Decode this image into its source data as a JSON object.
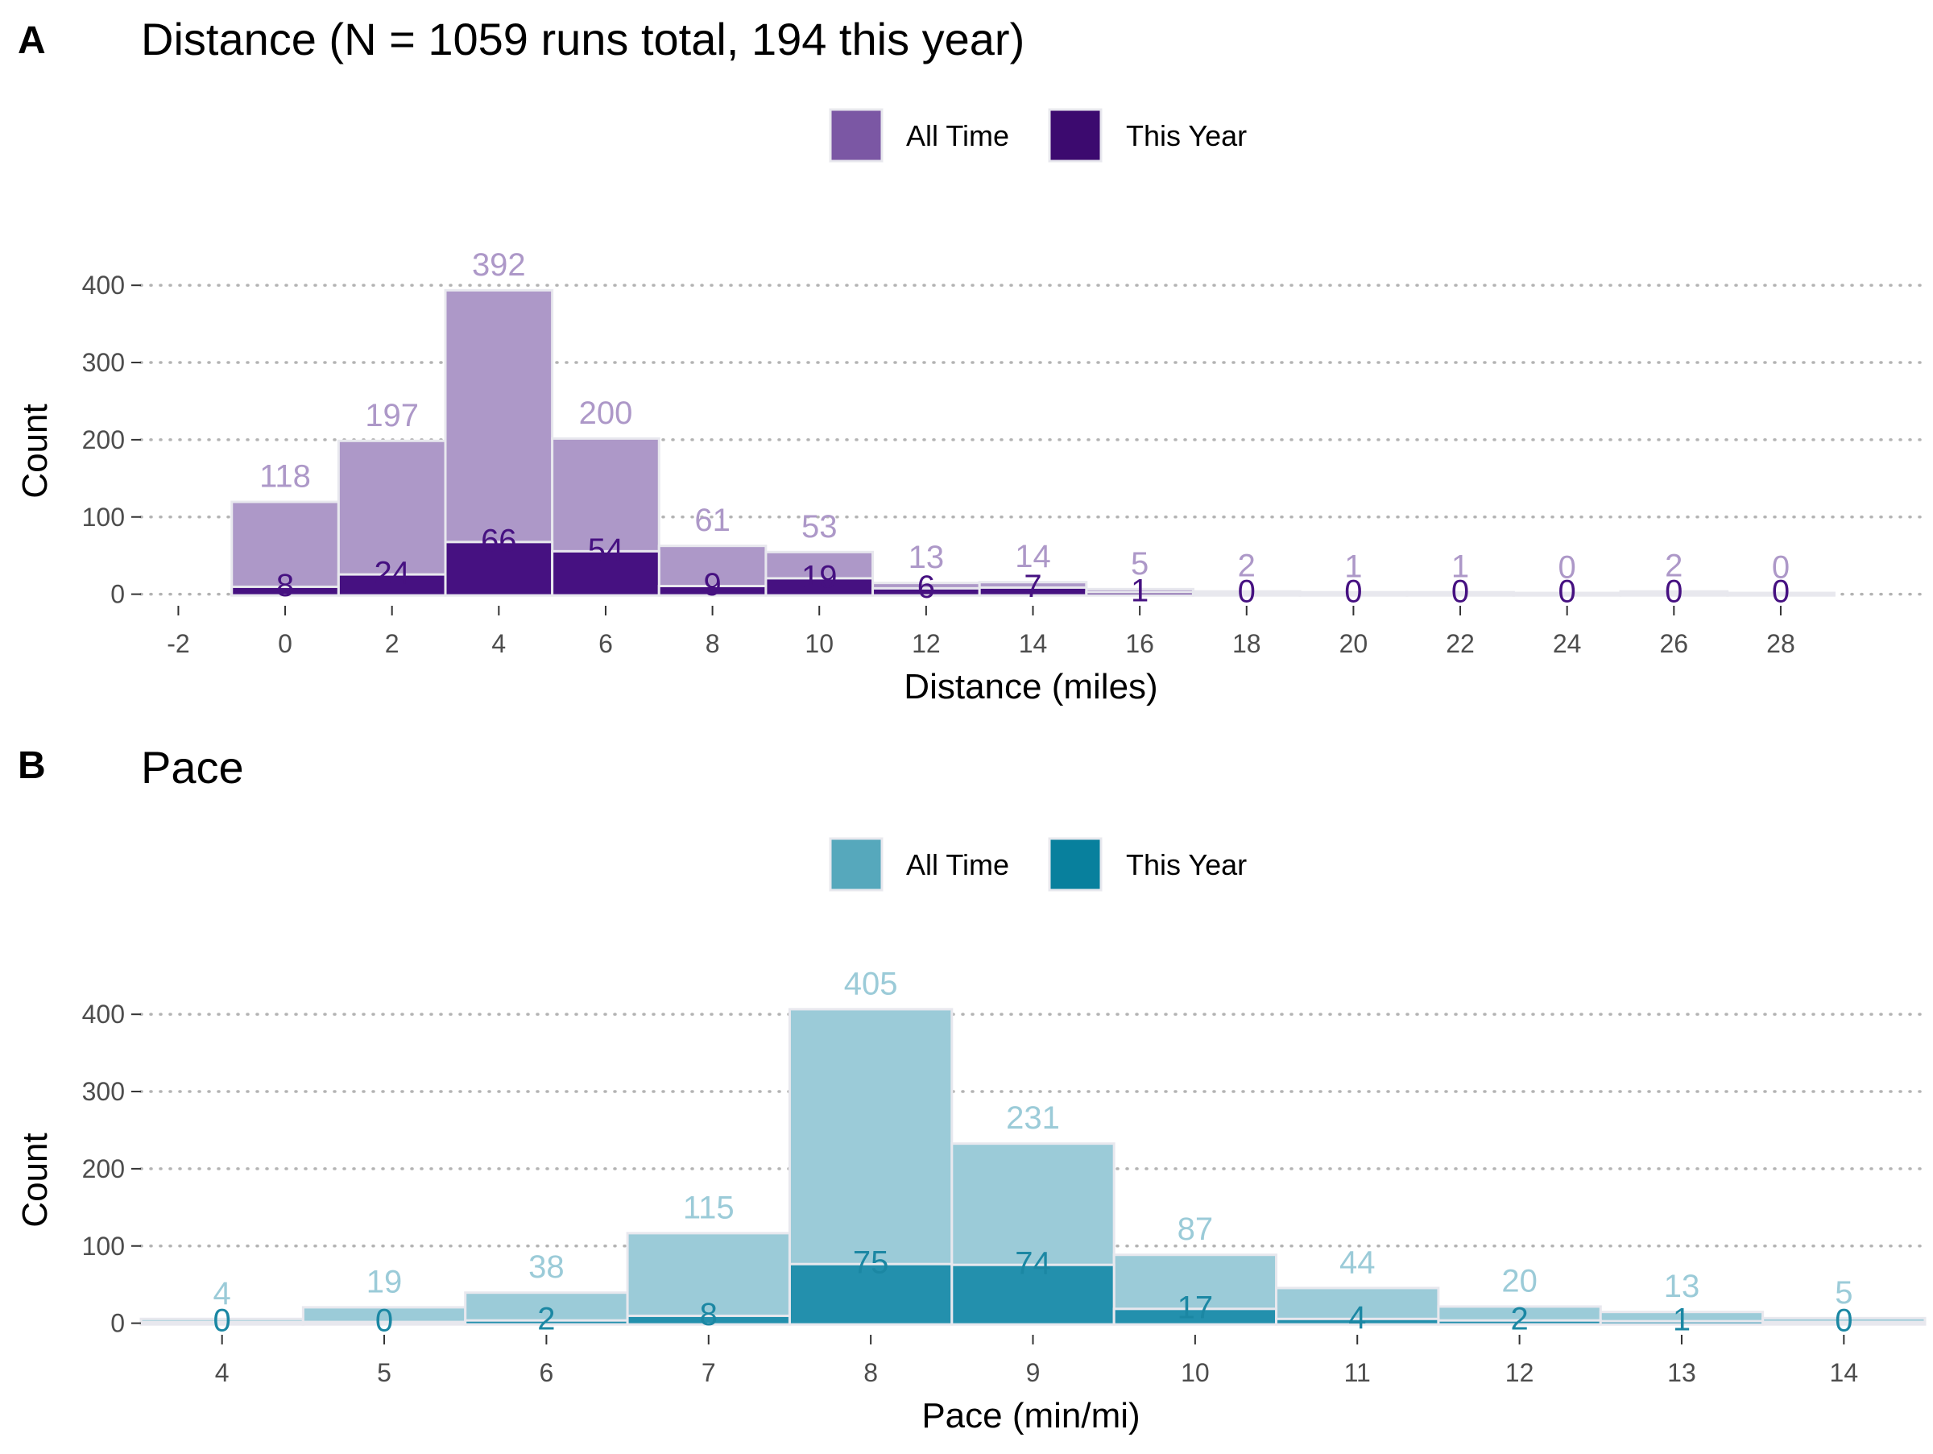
{
  "chart_data": [
    {
      "type": "bar",
      "panel_letter": "A",
      "title": "Distance (N = 1059 runs total, 194 this year)",
      "xlabel": "Distance (miles)",
      "ylabel": "Count",
      "bin_centers": [
        0,
        2,
        4,
        6,
        8,
        10,
        12,
        14,
        16,
        18,
        20,
        22,
        24,
        26,
        28
      ],
      "bin_width": 2,
      "xlim": [
        -2.7,
        30.7
      ],
      "x_ticks": [
        -2,
        0,
        2,
        4,
        6,
        8,
        10,
        12,
        14,
        16,
        18,
        20,
        22,
        24,
        26,
        28
      ],
      "x_tick_labels": [
        "-2",
        "0",
        "2",
        "4",
        "6",
        "8",
        "10",
        "12",
        "14",
        "16",
        "18",
        "20",
        "22",
        "24",
        "26",
        "28"
      ],
      "ylim": [
        -15,
        420
      ],
      "y_ticks": [
        0,
        100,
        200,
        300,
        400
      ],
      "y_tick_labels": [
        "0",
        "100",
        "200",
        "300",
        "400"
      ],
      "grid": "horizontal dotted",
      "legend_position": "top-center",
      "series": [
        {
          "name": "All Time",
          "legend_label": "All Time",
          "legend_color": "#7b57a4",
          "bar_color": "#ad98c8",
          "label_color": "#ad98c8",
          "values": [
            118,
            197,
            392,
            200,
            61,
            53,
            13,
            14,
            5,
            2,
            1,
            1,
            0,
            2,
            0
          ],
          "value_labels": [
            "118",
            "197",
            "392",
            "200",
            "61",
            "53",
            "13",
            "14",
            "5",
            "2",
            "1",
            "1",
            "0",
            "2",
            "0"
          ]
        },
        {
          "name": "This Year",
          "legend_label": "This Year",
          "legend_color": "#3c0a6f",
          "bar_color": "#461181",
          "label_color": "#461181",
          "values": [
            8,
            24,
            66,
            54,
            9,
            19,
            6,
            7,
            1,
            0,
            0,
            0,
            0,
            0,
            0
          ],
          "value_labels": [
            "8",
            "24",
            "66",
            "54",
            "9",
            "19",
            "6",
            "7",
            "1",
            "0",
            "0",
            "0",
            "0",
            "0",
            "0"
          ]
        }
      ]
    },
    {
      "type": "bar",
      "panel_letter": "B",
      "title": "Pace",
      "xlabel": "Pace (min/mi)",
      "ylabel": "Count",
      "bin_centers": [
        4,
        5,
        6,
        7,
        8,
        9,
        10,
        11,
        12,
        13,
        14
      ],
      "bin_width": 1,
      "xlim": [
        3.5,
        14.5
      ],
      "x_ticks": [
        4,
        5,
        6,
        7,
        8,
        9,
        10,
        11,
        12,
        13,
        14
      ],
      "x_tick_labels": [
        "4",
        "5",
        "6",
        "7",
        "8",
        "9",
        "10",
        "11",
        "12",
        "13",
        "14"
      ],
      "ylim": [
        -15,
        420
      ],
      "y_ticks": [
        0,
        100,
        200,
        300,
        400
      ],
      "y_tick_labels": [
        "0",
        "100",
        "200",
        "300",
        "400"
      ],
      "grid": "horizontal dotted",
      "legend_position": "top-center",
      "series": [
        {
          "name": "All Time",
          "legend_label": "All Time",
          "legend_color": "#56a8bc",
          "bar_color": "#9bcbd8",
          "label_color": "#9bcbd8",
          "values": [
            4,
            19,
            38,
            115,
            405,
            231,
            87,
            44,
            20,
            13,
            5
          ],
          "value_labels": [
            "4",
            "19",
            "38",
            "115",
            "405",
            "231",
            "87",
            "44",
            "20",
            "13",
            "5"
          ]
        },
        {
          "name": "This Year",
          "legend_label": "This Year",
          "legend_color": "#08809d",
          "bar_color": "#2390ad",
          "label_color": "#1b87a3",
          "values": [
            0,
            0,
            2,
            8,
            75,
            74,
            17,
            4,
            2,
            1,
            0
          ],
          "value_labels": [
            "0",
            "0",
            "2",
            "8",
            "75",
            "74",
            "17",
            "4",
            "2",
            "1",
            "0"
          ]
        }
      ]
    }
  ]
}
